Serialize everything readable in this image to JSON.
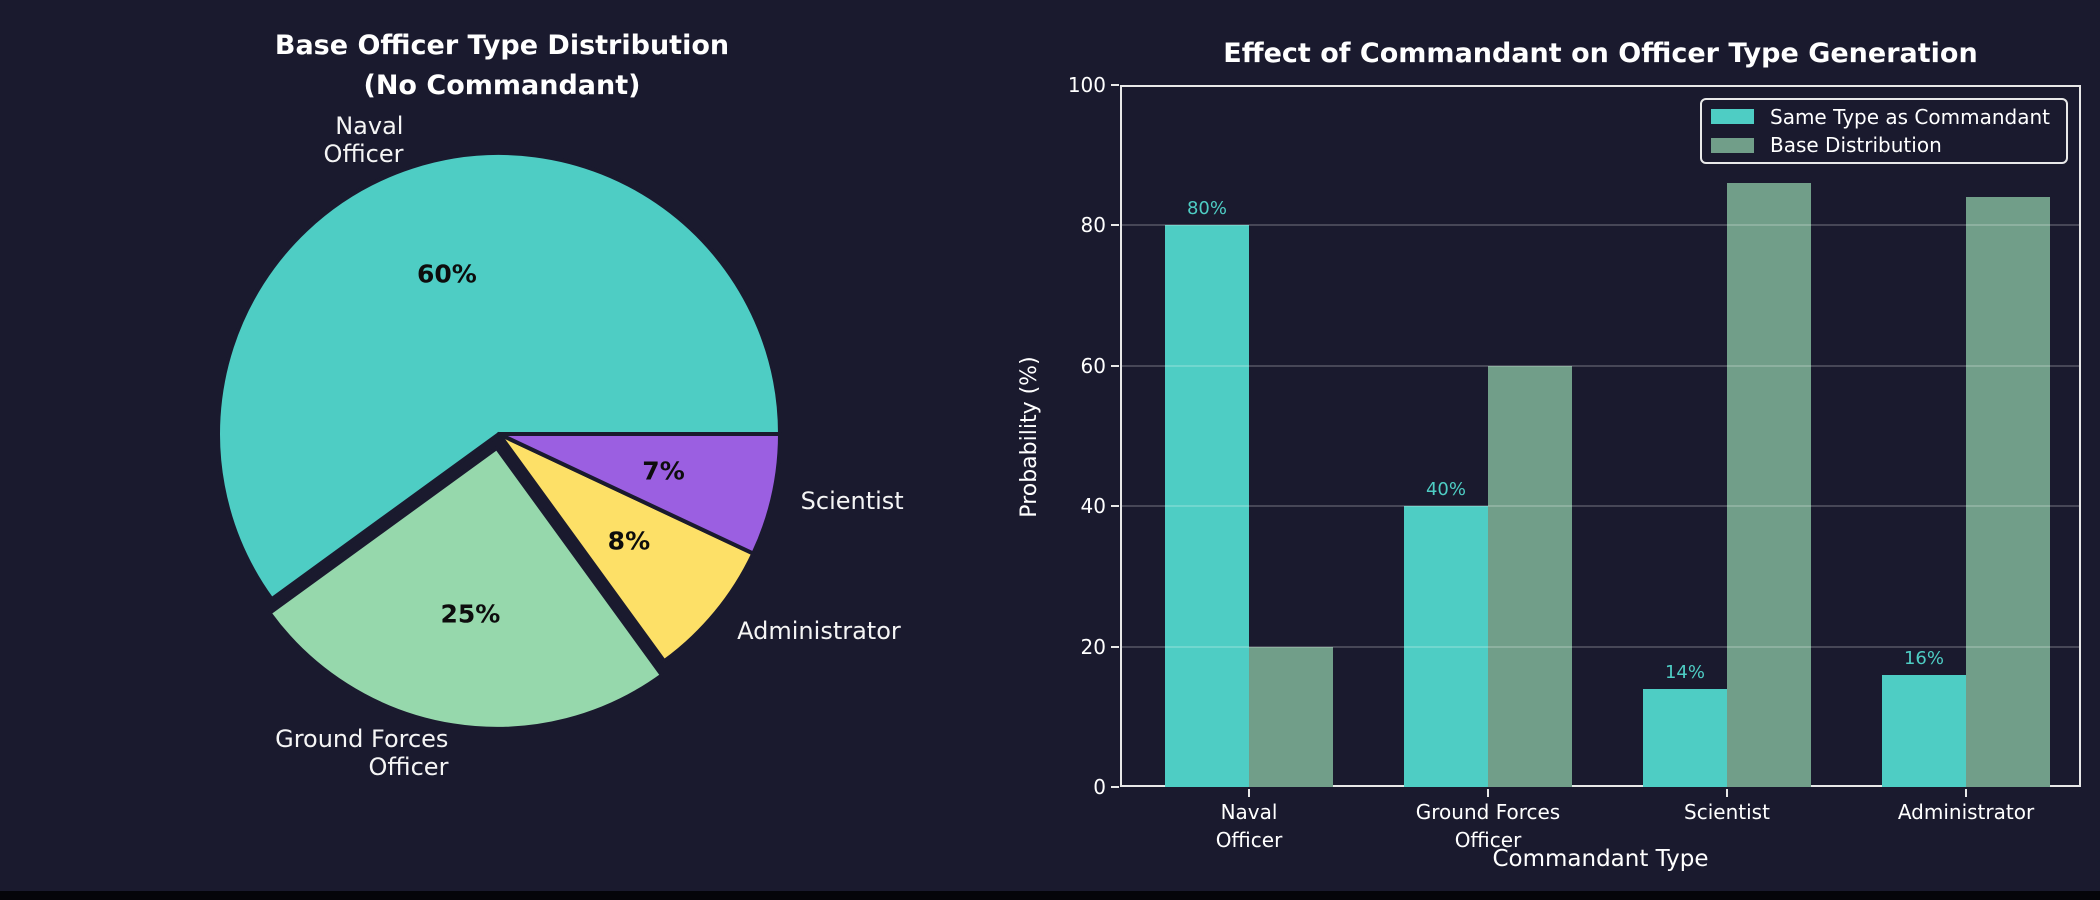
{
  "figure": {
    "background": "#1a1a2e",
    "text_color": "#ffffff",
    "spine_color": "#e8e8e8",
    "grid_color": "rgba(255,255,255,0.20)"
  },
  "chart_data": [
    {
      "type": "pie",
      "title_lines": [
        "Base Officer Type Distribution",
        "(No Commandant)"
      ],
      "labels": [
        "Naval Officer",
        "Ground Forces Officer",
        "Administrator",
        "Scientist"
      ],
      "label_lines": [
        [
          "Naval",
          "Officer"
        ],
        [
          "Ground Forces",
          "Officer"
        ],
        [
          "Administrator"
        ],
        [
          "Scientist"
        ]
      ],
      "values": [
        60,
        25,
        8,
        7
      ],
      "autopct_labels": [
        "60%",
        "25%",
        "8%",
        "7%"
      ],
      "colors": [
        "#4ECDC4",
        "#96D8AC",
        "#FDE067",
        "#9B5FE1"
      ],
      "explode": [
        0,
        0.05,
        0,
        0
      ],
      "start_angle": 0,
      "direction": "counterclockwise",
      "edge_color": "#1a1a2e"
    },
    {
      "type": "bar",
      "title": "Effect of Commandant on Officer Type Generation",
      "xlabel": "Commandant Type",
      "ylabel": "Probability (%)",
      "categories": [
        "Naval Officer",
        "Ground Forces Officer",
        "Scientist",
        "Administrator"
      ],
      "category_lines": [
        [
          "Naval",
          "Officer"
        ],
        [
          "Ground Forces",
          "Officer"
        ],
        [
          "Scientist"
        ],
        [
          "Administrator"
        ]
      ],
      "series": [
        {
          "name": "Same Type as Commandant",
          "color": "#4ECDC4",
          "values": [
            80,
            40,
            14,
            16
          ],
          "value_labels": [
            "80%",
            "40%",
            "14%",
            "16%"
          ]
        },
        {
          "name": "Base Distribution",
          "color": "#719E89",
          "values": [
            20,
            60,
            86,
            84
          ],
          "value_labels": []
        }
      ],
      "ylim": [
        0,
        100
      ],
      "yticks": [
        0,
        20,
        40,
        60,
        80,
        100
      ],
      "grid": true,
      "legend_position": "upper right"
    }
  ]
}
